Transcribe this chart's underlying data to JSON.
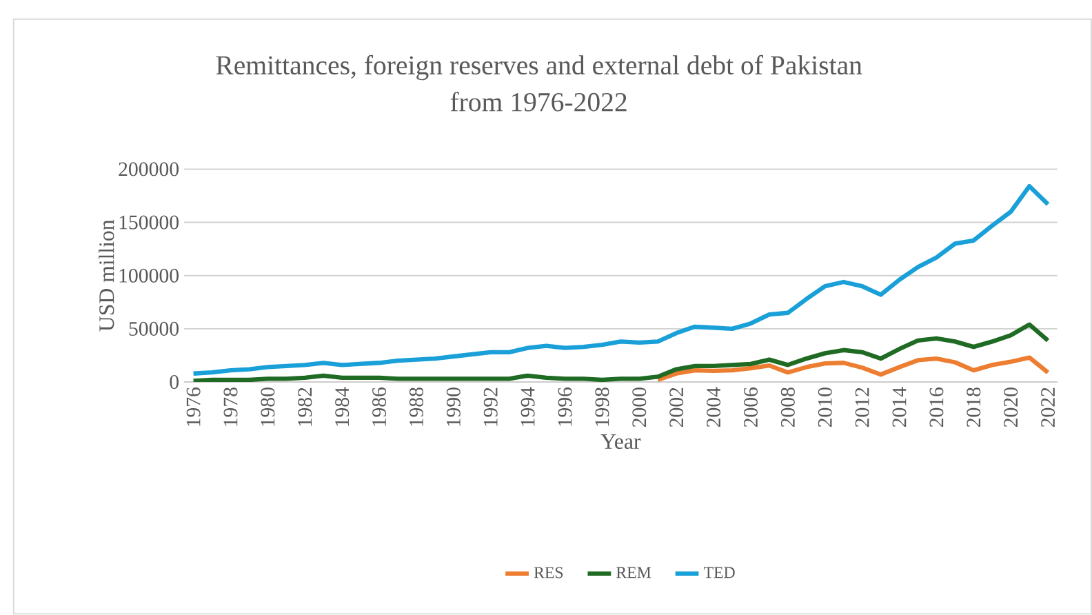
{
  "chart_data": {
    "type": "line",
    "title": "Remittances, foreign reserves and external debt of Pakistan\nfrom 1976-2022",
    "xlabel": "Year",
    "ylabel": "USD million",
    "x": [
      1976,
      1977,
      1978,
      1979,
      1980,
      1981,
      1982,
      1983,
      1984,
      1985,
      1986,
      1987,
      1988,
      1989,
      1990,
      1991,
      1992,
      1993,
      1994,
      1995,
      1996,
      1997,
      1998,
      1999,
      2000,
      2001,
      2002,
      2003,
      2004,
      2005,
      2006,
      2007,
      2008,
      2009,
      2010,
      2011,
      2012,
      2013,
      2014,
      2015,
      2016,
      2017,
      2018,
      2019,
      2020,
      2021,
      2022
    ],
    "series": [
      {
        "name": "RES",
        "color": "#ed7d31",
        "values": [
          null,
          null,
          null,
          null,
          null,
          null,
          null,
          null,
          null,
          null,
          null,
          null,
          null,
          null,
          null,
          null,
          null,
          null,
          null,
          null,
          null,
          null,
          null,
          null,
          null,
          2000,
          8000,
          11000,
          10500,
          11000,
          13000,
          15500,
          9000,
          14000,
          17500,
          18000,
          13500,
          7000,
          14000,
          20500,
          22000,
          18500,
          11000,
          16000,
          19000,
          23000,
          9000
        ]
      },
      {
        "name": "REM",
        "color": "#1f6b24",
        "values": [
          1000,
          2000,
          2000,
          2000,
          3000,
          3000,
          4000,
          6000,
          4000,
          4000,
          4000,
          3000,
          3000,
          3000,
          3000,
          3000,
          3000,
          3000,
          6000,
          4000,
          3000,
          3000,
          2000,
          3000,
          3000,
          5000,
          12000,
          15000,
          15000,
          16000,
          17000,
          21000,
          16000,
          22000,
          27000,
          30000,
          28000,
          22000,
          31000,
          39000,
          41000,
          38000,
          33000,
          38000,
          44000,
          54000,
          39000
        ]
      },
      {
        "name": "TED",
        "color": "#1aa0d8",
        "values": [
          8000,
          9000,
          11000,
          12000,
          14000,
          15000,
          16000,
          18000,
          16000,
          17000,
          18000,
          20000,
          21000,
          22000,
          24000,
          26000,
          28000,
          28000,
          32000,
          34000,
          32000,
          33000,
          35000,
          38000,
          37000,
          38000,
          46000,
          52000,
          51000,
          50000,
          55000,
          63500,
          65000,
          78000,
          90000,
          94000,
          90000,
          82000,
          96000,
          108000,
          117000,
          130000,
          133000,
          147000,
          160000,
          184000,
          167000
        ]
      }
    ],
    "xlim": [
      1975.5,
      2022.5
    ],
    "xticks": [
      1976,
      1978,
      1980,
      1982,
      1984,
      1986,
      1988,
      1990,
      1992,
      1994,
      1996,
      1998,
      2000,
      2002,
      2004,
      2006,
      2008,
      2010,
      2012,
      2014,
      2016,
      2018,
      2020,
      2022
    ],
    "ylim": [
      0,
      200000
    ],
    "yticks": [
      0,
      50000,
      100000,
      150000,
      200000
    ],
    "grid": "y",
    "legend": "bottom",
    "marker": "none",
    "line_style": "solid"
  }
}
